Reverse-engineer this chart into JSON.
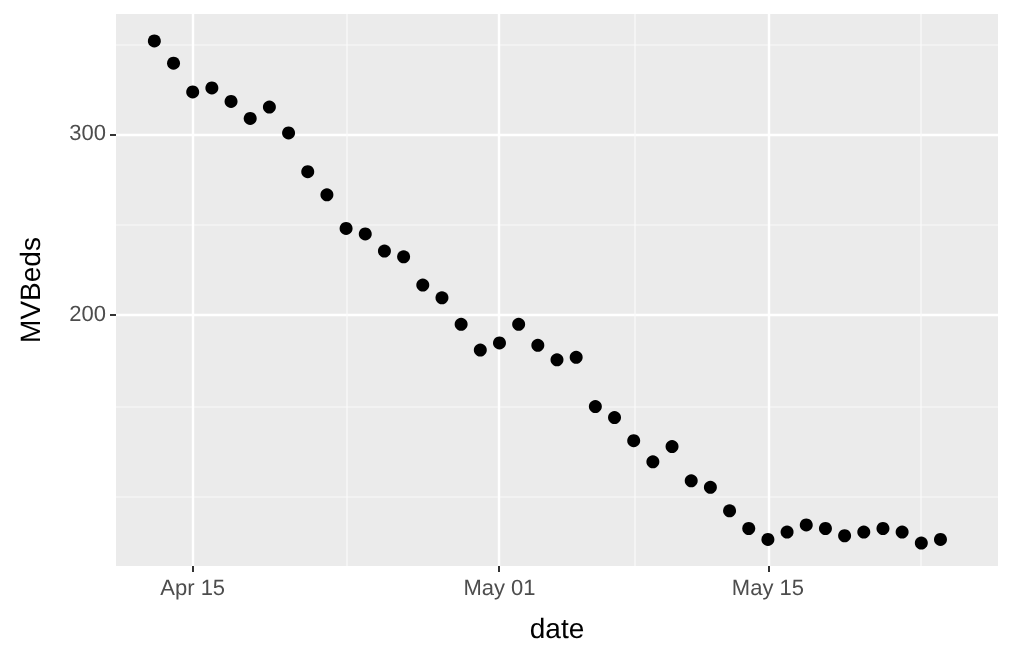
{
  "chart_data": {
    "type": "scatter",
    "xlabel": "date",
    "ylabel": "MVBeds",
    "x": [
      "--04-13",
      "--04-14",
      "--04-15",
      "--04-16",
      "--04-17",
      "--04-18",
      "--04-19",
      "--04-20",
      "--04-21",
      "--04-22",
      "--04-23",
      "--04-24",
      "--04-25",
      "--04-26",
      "--04-27",
      "--04-28",
      "--04-29",
      "--04-30",
      "--05-01",
      "--05-02",
      "--05-03",
      "--05-04",
      "--05-05",
      "--05-06",
      "--05-07",
      "--05-08",
      "--05-09",
      "--05-10",
      "--05-11",
      "--05-12",
      "--05-13",
      "--05-14",
      "--05-15",
      "--05-16",
      "--05-17",
      "--05-18",
      "--05-19",
      "--05-20",
      "--05-21",
      "--05-22",
      "--05-23",
      "--05-24"
    ],
    "series": [
      {
        "color": "#000000",
        "values": [
          370,
          352,
          330,
          333,
          323,
          311,
          319,
          301,
          276,
          262,
          243,
          240,
          231,
          228,
          214,
          208,
          196,
          185,
          188,
          196,
          187,
          181,
          182,
          163,
          159,
          151,
          144,
          149,
          138,
          136,
          129,
          124,
          121,
          123,
          125,
          124,
          122,
          123,
          124,
          123,
          120,
          121
        ]
      }
    ],
    "log": "y",
    "marker": "circle",
    "grid": true,
    "xlim": [
      "--04-11",
      "--05-27"
    ],
    "xticks": [
      {
        "value": "--04-15",
        "label": "Apr 15"
      },
      {
        "value": "--04-23",
        "label": null
      },
      {
        "value": "--05-01",
        "label": "May 01"
      },
      {
        "value": "--05-08",
        "label": null
      },
      {
        "value": "--05-15",
        "label": "May 15"
      },
      {
        "value": "--05-23",
        "label": null
      }
    ],
    "ylim": [
      114,
      393
    ],
    "yticks": [
      {
        "value": 133.3,
        "label": null
      },
      {
        "value": 163.3,
        "label": null
      },
      200,
      {
        "value": 245,
        "label": null
      },
      300,
      {
        "value": 367.4,
        "label": null
      }
    ]
  }
}
